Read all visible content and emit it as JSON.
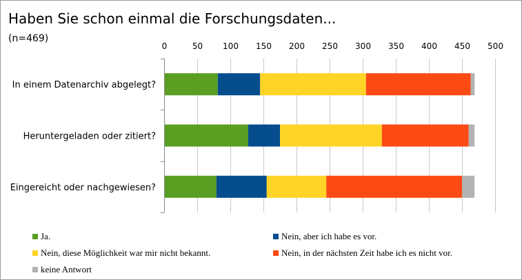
{
  "chart_data": {
    "type": "bar",
    "orientation": "horizontal",
    "stacked": true,
    "title": "Haben Sie schon einmal die Forschungsdaten...",
    "subtitle": "(n=469)",
    "categories": [
      "In einem Datenarchiv abgelegt?",
      "Heruntergeladen oder zitiert?",
      "Eingereicht oder nachgewiesen?"
    ],
    "series": [
      {
        "name": "Ja.",
        "color": "#5a9e22",
        "values": [
          81,
          127,
          79
        ]
      },
      {
        "name": "Nein, aber ich habe es vor.",
        "color": "#064d8e",
        "values": [
          64,
          48,
          76
        ]
      },
      {
        "name": "Nein, diese Möglichkeit war mir nicht bekannt.",
        "color": "#fed426",
        "values": [
          160,
          154,
          90
        ]
      },
      {
        "name": "Nein, in der nächsten Zeit habe ich es nicht vor.",
        "color": "#fc4a14",
        "values": [
          158,
          131,
          205
        ]
      },
      {
        "name": "keine Antwort",
        "color": "#b3b3b3",
        "values": [
          6,
          9,
          19
        ]
      }
    ],
    "xlim": [
      0,
      500
    ],
    "xticks": [
      "0",
      "50",
      "100",
      "150",
      "200",
      "250",
      "300",
      "350",
      "400",
      "450",
      "500"
    ],
    "xaxis_position": "top",
    "grid": true,
    "legend_position": "bottom"
  }
}
